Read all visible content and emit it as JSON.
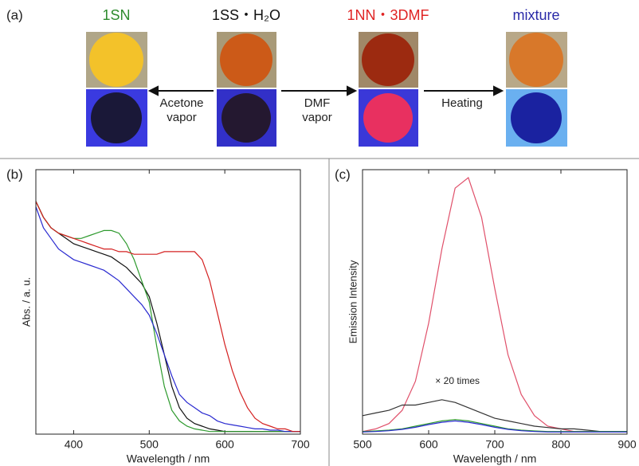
{
  "panel_a": {
    "label": "(a)",
    "samples": [
      {
        "name": "1SN",
        "color": "#2e8b2e"
      },
      {
        "name": "1SS・H₂O",
        "color": "#111111"
      },
      {
        "name": "1NN・3DMF",
        "color": "#e02424"
      },
      {
        "name": "mixture",
        "color": "#2a2aa8"
      }
    ],
    "arrows": [
      [
        "Acetone",
        "vapor"
      ],
      [
        "DMF",
        "vapor"
      ],
      [
        "Heating"
      ]
    ]
  },
  "chart_data": [
    {
      "type": "line",
      "label": "(b)",
      "x_label": "Wavelength / nm",
      "y_label": "Abs. / a. u.",
      "xlim": [
        350,
        700
      ],
      "xticks": [
        400,
        500,
        600,
        700
      ],
      "ylim": [
        0,
        1
      ],
      "x": [
        350,
        360,
        370,
        380,
        390,
        400,
        410,
        420,
        430,
        440,
        450,
        460,
        470,
        480,
        490,
        500,
        510,
        520,
        530,
        540,
        550,
        560,
        570,
        580,
        590,
        600,
        610,
        620,
        630,
        640,
        650,
        660,
        670,
        680,
        690,
        700
      ],
      "series": [
        {
          "color": "#111111",
          "values": [
            0.88,
            0.82,
            0.78,
            0.76,
            0.74,
            0.72,
            0.71,
            0.7,
            0.69,
            0.68,
            0.67,
            0.65,
            0.63,
            0.6,
            0.57,
            0.52,
            0.42,
            0.3,
            0.18,
            0.1,
            0.06,
            0.04,
            0.03,
            0.02,
            0.015,
            0.01,
            0.01,
            0.01,
            0.01,
            0.01,
            0.01,
            0.01,
            0.01,
            0.01,
            0.01,
            0.01
          ]
        },
        {
          "color": "#2e9a2e",
          "values": [
            0.88,
            0.82,
            0.78,
            0.76,
            0.75,
            0.74,
            0.74,
            0.75,
            0.76,
            0.77,
            0.77,
            0.76,
            0.72,
            0.66,
            0.58,
            0.5,
            0.33,
            0.18,
            0.09,
            0.05,
            0.03,
            0.02,
            0.015,
            0.01,
            0.01,
            0.01,
            0.01,
            0.01,
            0.01,
            0.01,
            0.01,
            0.01,
            0.01,
            0.01,
            0.01,
            0.01
          ]
        },
        {
          "color": "#2a2ad0",
          "values": [
            0.86,
            0.78,
            0.74,
            0.7,
            0.68,
            0.66,
            0.65,
            0.64,
            0.63,
            0.62,
            0.6,
            0.58,
            0.55,
            0.52,
            0.49,
            0.45,
            0.38,
            0.3,
            0.22,
            0.15,
            0.12,
            0.1,
            0.08,
            0.07,
            0.05,
            0.04,
            0.035,
            0.03,
            0.025,
            0.02,
            0.02,
            0.015,
            0.015,
            0.01,
            0.01,
            0.01
          ]
        },
        {
          "color": "#d42020",
          "values": [
            0.88,
            0.82,
            0.78,
            0.76,
            0.75,
            0.74,
            0.73,
            0.72,
            0.71,
            0.7,
            0.7,
            0.69,
            0.69,
            0.68,
            0.68,
            0.68,
            0.68,
            0.69,
            0.69,
            0.69,
            0.69,
            0.69,
            0.66,
            0.58,
            0.46,
            0.34,
            0.24,
            0.16,
            0.1,
            0.06,
            0.04,
            0.03,
            0.02,
            0.02,
            0.01,
            0.01
          ]
        }
      ]
    },
    {
      "type": "line",
      "label": "(c)",
      "x_label": "Wavelength / nm",
      "y_label": "Emission Intensity",
      "annotation": "× 20 times",
      "xlim": [
        500,
        900
      ],
      "xticks": [
        500,
        600,
        700,
        800,
        900
      ],
      "ylim": [
        0,
        1
      ],
      "x": [
        500,
        520,
        540,
        560,
        580,
        600,
        620,
        640,
        660,
        680,
        700,
        720,
        740,
        760,
        780,
        800,
        820,
        840,
        860,
        880,
        900
      ],
      "series": [
        {
          "color": "#e0506a",
          "values": [
            0.01,
            0.02,
            0.04,
            0.09,
            0.2,
            0.42,
            0.7,
            0.93,
            0.97,
            0.82,
            0.55,
            0.3,
            0.15,
            0.07,
            0.03,
            0.02,
            0.01,
            0.01,
            0.01,
            0.01,
            0.01
          ]
        },
        {
          "color": "#333333",
          "values": [
            0.07,
            0.08,
            0.09,
            0.11,
            0.11,
            0.12,
            0.13,
            0.12,
            0.1,
            0.08,
            0.06,
            0.05,
            0.04,
            0.03,
            0.025,
            0.02,
            0.02,
            0.015,
            0.01,
            0.01,
            0.01
          ]
        },
        {
          "color": "#2e9a2e",
          "values": [
            0.01,
            0.012,
            0.015,
            0.02,
            0.03,
            0.04,
            0.05,
            0.055,
            0.05,
            0.04,
            0.03,
            0.02,
            0.015,
            0.012,
            0.01,
            0.01,
            0.01,
            0.01,
            0.01,
            0.01,
            0.01
          ]
        },
        {
          "color": "#2a2ad0",
          "values": [
            0.008,
            0.01,
            0.013,
            0.018,
            0.026,
            0.036,
            0.045,
            0.05,
            0.045,
            0.036,
            0.026,
            0.018,
            0.013,
            0.01,
            0.008,
            0.008,
            0.008,
            0.008,
            0.008,
            0.008,
            0.008
          ]
        }
      ]
    }
  ]
}
